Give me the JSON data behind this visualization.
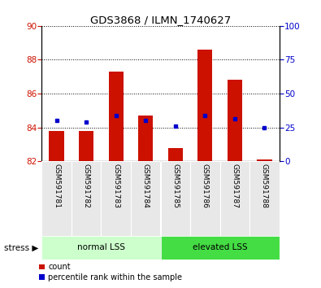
{
  "title": "GDS3868 / ILMN_1740627",
  "categories": [
    "GSM591781",
    "GSM591782",
    "GSM591783",
    "GSM591784",
    "GSM591785",
    "GSM591786",
    "GSM591787",
    "GSM591788"
  ],
  "bar_bottoms": [
    82,
    82,
    82,
    82,
    82,
    82,
    82,
    82
  ],
  "bar_tops": [
    83.8,
    83.8,
    87.3,
    84.7,
    82.8,
    88.6,
    86.8,
    82.1
  ],
  "percentile_values": [
    84.4,
    84.3,
    84.7,
    84.4,
    84.1,
    84.7,
    84.5,
    84.0
  ],
  "ylim_left": [
    82,
    90
  ],
  "ylim_right": [
    0,
    100
  ],
  "yticks_left": [
    82,
    84,
    86,
    88,
    90
  ],
  "yticks_right": [
    0,
    25,
    50,
    75,
    100
  ],
  "bar_color": "#cc1100",
  "percentile_color": "#0000cc",
  "normal_label": "normal LSS",
  "elevated_label": "elevated LSS",
  "normal_bg": "#ccffcc",
  "elevated_bg": "#44dd44",
  "stress_label": "stress",
  "legend_count": "count",
  "legend_percentile": "percentile rank within the sample",
  "tick_label_color_left": "#cc1100",
  "tick_label_color_right": "#0000cc",
  "bg_color": "#e8e8e8"
}
